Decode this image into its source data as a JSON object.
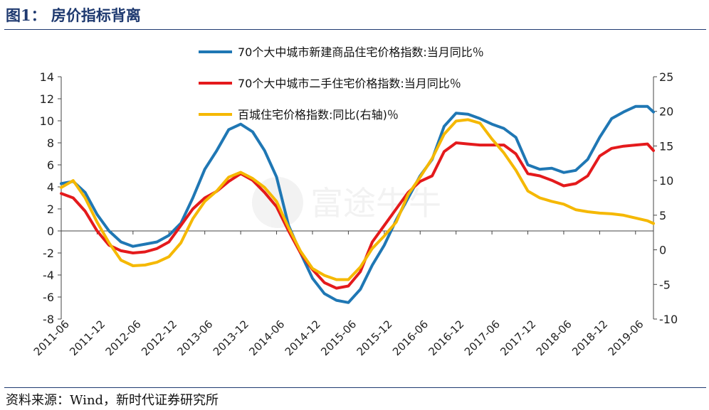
{
  "figure": {
    "title": "图1： 房价指标背离",
    "source": "资料来源：Wind，新时代证券研究所",
    "watermark": "富途牛牛"
  },
  "colors": {
    "title": "#1f3a70",
    "series1": "#1f77b4",
    "series2": "#e41a1c",
    "series3": "#f5b800",
    "axis": "#444444"
  },
  "chart_data": {
    "type": "line",
    "title": "",
    "xlabel": "",
    "ylabel": "",
    "y_left_lim": [
      -8,
      14
    ],
    "y_left_ticks": [
      -8,
      -6,
      -4,
      -2,
      0,
      2,
      4,
      6,
      8,
      10,
      12,
      14
    ],
    "y_right_lim": [
      -10,
      25
    ],
    "y_right_ticks": [
      -10,
      -5,
      0,
      5,
      10,
      15,
      20,
      25
    ],
    "x_ticks": [
      "2011-06",
      "2011-12",
      "2012-06",
      "2012-12",
      "2013-06",
      "2013-12",
      "2014-06",
      "2014-12",
      "2015-06",
      "2015-12",
      "2016-06",
      "2016-12",
      "2017-06",
      "2017-12",
      "2018-06",
      "2018-12",
      "2019-06"
    ],
    "legend_position": "top",
    "grid": false,
    "series": [
      {
        "name": "70个大中城市新建商品住宅价格指数:当月同比％",
        "axis": "left",
        "points": [
          [
            "2011-06",
            4.3
          ],
          [
            "2011-08",
            4.5
          ],
          [
            "2011-10",
            3.5
          ],
          [
            "2011-12",
            1.5
          ],
          [
            "2012-02",
            0.0
          ],
          [
            "2012-04",
            -1.0
          ],
          [
            "2012-06",
            -1.4
          ],
          [
            "2012-08",
            -1.2
          ],
          [
            "2012-10",
            -1.0
          ],
          [
            "2012-12",
            -0.4
          ],
          [
            "2013-02",
            0.7
          ],
          [
            "2013-04",
            3.0
          ],
          [
            "2013-06",
            5.6
          ],
          [
            "2013-08",
            7.3
          ],
          [
            "2013-10",
            9.2
          ],
          [
            "2013-12",
            9.7
          ],
          [
            "2014-02",
            9.0
          ],
          [
            "2014-04",
            7.3
          ],
          [
            "2014-06",
            4.9
          ],
          [
            "2014-08",
            0.5
          ],
          [
            "2014-10",
            -2.0
          ],
          [
            "2014-12",
            -4.3
          ],
          [
            "2015-02",
            -5.7
          ],
          [
            "2015-04",
            -6.3
          ],
          [
            "2015-06",
            -6.5
          ],
          [
            "2015-08",
            -5.3
          ],
          [
            "2015-10",
            -3.1
          ],
          [
            "2015-12",
            -1.3
          ],
          [
            "2016-02",
            1.0
          ],
          [
            "2016-04",
            3.0
          ],
          [
            "2016-06",
            5.0
          ],
          [
            "2016-08",
            6.5
          ],
          [
            "2016-10",
            9.5
          ],
          [
            "2016-12",
            10.7
          ],
          [
            "2017-02",
            10.6
          ],
          [
            "2017-04",
            10.2
          ],
          [
            "2017-06",
            9.7
          ],
          [
            "2017-08",
            9.3
          ],
          [
            "2017-10",
            8.5
          ],
          [
            "2017-12",
            6.0
          ],
          [
            "2018-02",
            5.6
          ],
          [
            "2018-04",
            5.7
          ],
          [
            "2018-06",
            5.3
          ],
          [
            "2018-08",
            5.5
          ],
          [
            "2018-10",
            6.5
          ],
          [
            "2018-12",
            8.5
          ],
          [
            "2019-02",
            10.2
          ],
          [
            "2019-04",
            10.8
          ],
          [
            "2019-06",
            11.3
          ],
          [
            "2019-08",
            11.3
          ],
          [
            "2019-09",
            10.8
          ]
        ]
      },
      {
        "name": "70个大中城市二手住宅价格指数:当月同比％",
        "axis": "left",
        "points": [
          [
            "2011-06",
            3.4
          ],
          [
            "2011-08",
            3.0
          ],
          [
            "2011-10",
            1.8
          ],
          [
            "2011-12",
            0.0
          ],
          [
            "2012-02",
            -1.3
          ],
          [
            "2012-04",
            -1.8
          ],
          [
            "2012-06",
            -2.0
          ],
          [
            "2012-08",
            -1.9
          ],
          [
            "2012-10",
            -1.6
          ],
          [
            "2012-12",
            -1.0
          ],
          [
            "2013-02",
            0.5
          ],
          [
            "2013-04",
            2.0
          ],
          [
            "2013-06",
            3.0
          ],
          [
            "2013-08",
            3.6
          ],
          [
            "2013-10",
            4.5
          ],
          [
            "2013-12",
            5.2
          ],
          [
            "2014-02",
            4.6
          ],
          [
            "2014-04",
            3.5
          ],
          [
            "2014-06",
            2.2
          ],
          [
            "2014-08",
            0.0
          ],
          [
            "2014-10",
            -2.0
          ],
          [
            "2014-12",
            -3.5
          ],
          [
            "2015-02",
            -4.7
          ],
          [
            "2015-04",
            -5.2
          ],
          [
            "2015-06",
            -5.0
          ],
          [
            "2015-08",
            -3.7
          ],
          [
            "2015-10",
            -1.0
          ],
          [
            "2015-12",
            0.5
          ],
          [
            "2016-02",
            2.0
          ],
          [
            "2016-04",
            3.5
          ],
          [
            "2016-06",
            4.5
          ],
          [
            "2016-08",
            5.0
          ],
          [
            "2016-10",
            7.2
          ],
          [
            "2016-12",
            8.0
          ],
          [
            "2017-02",
            7.9
          ],
          [
            "2017-04",
            7.8
          ],
          [
            "2017-06",
            7.8
          ],
          [
            "2017-08",
            7.8
          ],
          [
            "2017-10",
            7.0
          ],
          [
            "2017-12",
            5.2
          ],
          [
            "2018-02",
            5.0
          ],
          [
            "2018-04",
            4.6
          ],
          [
            "2018-06",
            4.1
          ],
          [
            "2018-08",
            4.3
          ],
          [
            "2018-10",
            5.0
          ],
          [
            "2018-12",
            6.8
          ],
          [
            "2019-02",
            7.5
          ],
          [
            "2019-04",
            7.7
          ],
          [
            "2019-06",
            7.8
          ],
          [
            "2019-08",
            7.9
          ],
          [
            "2019-09",
            7.3
          ]
        ]
      },
      {
        "name": "百城住宅价格指数:同比(右轴)％",
        "axis": "right",
        "points": [
          [
            "2011-06",
            9.0
          ],
          [
            "2011-08",
            10.0
          ],
          [
            "2011-10",
            7.5
          ],
          [
            "2011-12",
            4.0
          ],
          [
            "2012-02",
            1.0
          ],
          [
            "2012-04",
            -1.5
          ],
          [
            "2012-06",
            -2.3
          ],
          [
            "2012-08",
            -2.2
          ],
          [
            "2012-10",
            -1.8
          ],
          [
            "2012-12",
            -1.0
          ],
          [
            "2013-02",
            1.0
          ],
          [
            "2013-04",
            4.5
          ],
          [
            "2013-06",
            7.0
          ],
          [
            "2013-08",
            8.5
          ],
          [
            "2013-10",
            10.5
          ],
          [
            "2013-12",
            11.2
          ],
          [
            "2014-02",
            10.3
          ],
          [
            "2014-04",
            9.0
          ],
          [
            "2014-06",
            7.0
          ],
          [
            "2014-08",
            3.2
          ],
          [
            "2014-10",
            -0.2
          ],
          [
            "2014-12",
            -2.7
          ],
          [
            "2015-02",
            -3.7
          ],
          [
            "2015-04",
            -4.3
          ],
          [
            "2015-06",
            -4.3
          ],
          [
            "2015-08",
            -2.5
          ],
          [
            "2015-10",
            0.2
          ],
          [
            "2015-12",
            2.0
          ],
          [
            "2016-02",
            4.0
          ],
          [
            "2016-04",
            8.0
          ],
          [
            "2016-06",
            10.5
          ],
          [
            "2016-08",
            13.2
          ],
          [
            "2016-10",
            16.7
          ],
          [
            "2016-12",
            18.6
          ],
          [
            "2017-02",
            18.8
          ],
          [
            "2017-04",
            18.3
          ],
          [
            "2017-06",
            16.0
          ],
          [
            "2017-08",
            14.0
          ],
          [
            "2017-10",
            11.5
          ],
          [
            "2017-12",
            8.5
          ],
          [
            "2018-02",
            7.5
          ],
          [
            "2018-04",
            7.0
          ],
          [
            "2018-06",
            6.6
          ],
          [
            "2018-08",
            5.8
          ],
          [
            "2018-10",
            5.5
          ],
          [
            "2018-12",
            5.3
          ],
          [
            "2019-02",
            5.2
          ],
          [
            "2019-04",
            5.0
          ],
          [
            "2019-06",
            4.6
          ],
          [
            "2019-08",
            4.2
          ],
          [
            "2019-09",
            3.8
          ]
        ]
      }
    ]
  }
}
